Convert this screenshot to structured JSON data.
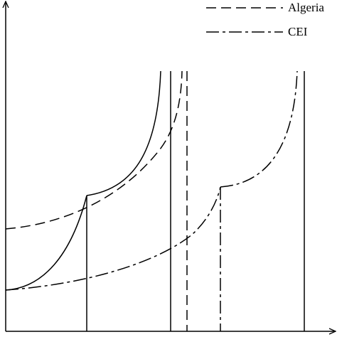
{
  "legend": {
    "items": [
      {
        "label": "Algeria"
      },
      {
        "label": "CEI"
      }
    ]
  }
}
